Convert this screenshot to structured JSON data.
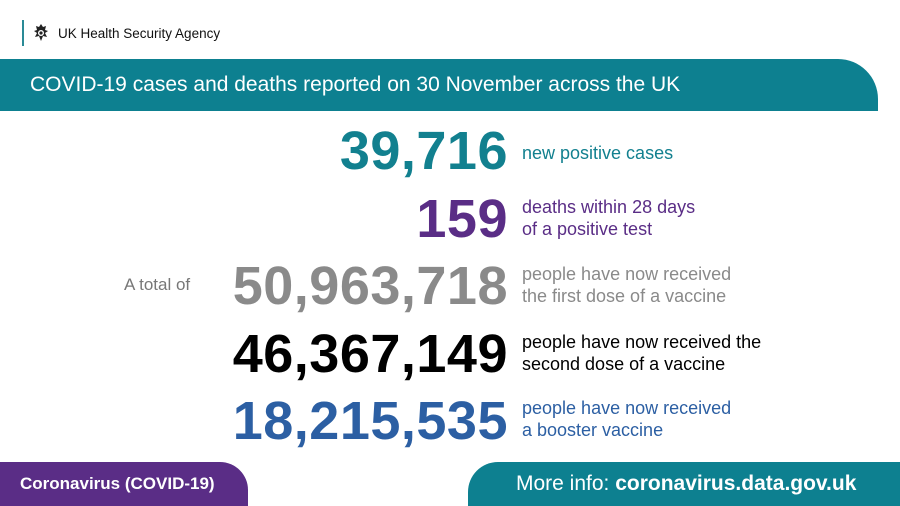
{
  "header": {
    "agency_name": "UK Health Security Agency",
    "logo_icon": "royal-crest-icon"
  },
  "banner": {
    "title": "COVID-19 cases and deaths reported on 30 November across the UK"
  },
  "stats": {
    "cases": {
      "value": "39,716",
      "label_line1": "new positive cases",
      "color": "#12808f"
    },
    "deaths": {
      "value": "159",
      "label_line1": "deaths within 28 days",
      "label_line2": "of a positive test",
      "color": "#5a2d86"
    },
    "total_prefix": "A total of",
    "first_dose": {
      "value": "50,963,718",
      "label_line1": "people have now received",
      "label_line2": "the first dose of a vaccine",
      "color": "#8a8a8a"
    },
    "second_dose": {
      "value": "46,367,149",
      "label_line1": "people have now received the",
      "label_line2": "second dose of a vaccine",
      "color": "#000000"
    },
    "booster": {
      "value": "18,215,535",
      "label_line1": "people have now received",
      "label_line2": "a booster vaccine",
      "color": "#2c5fa3"
    }
  },
  "footer": {
    "left_label": "Coronavirus (COVID-19)",
    "more_info_prefix": "More info:",
    "more_info_link": "coronavirus.data.gov.uk"
  },
  "colors": {
    "teal": "#0d8090",
    "purple": "#5a2d86"
  }
}
